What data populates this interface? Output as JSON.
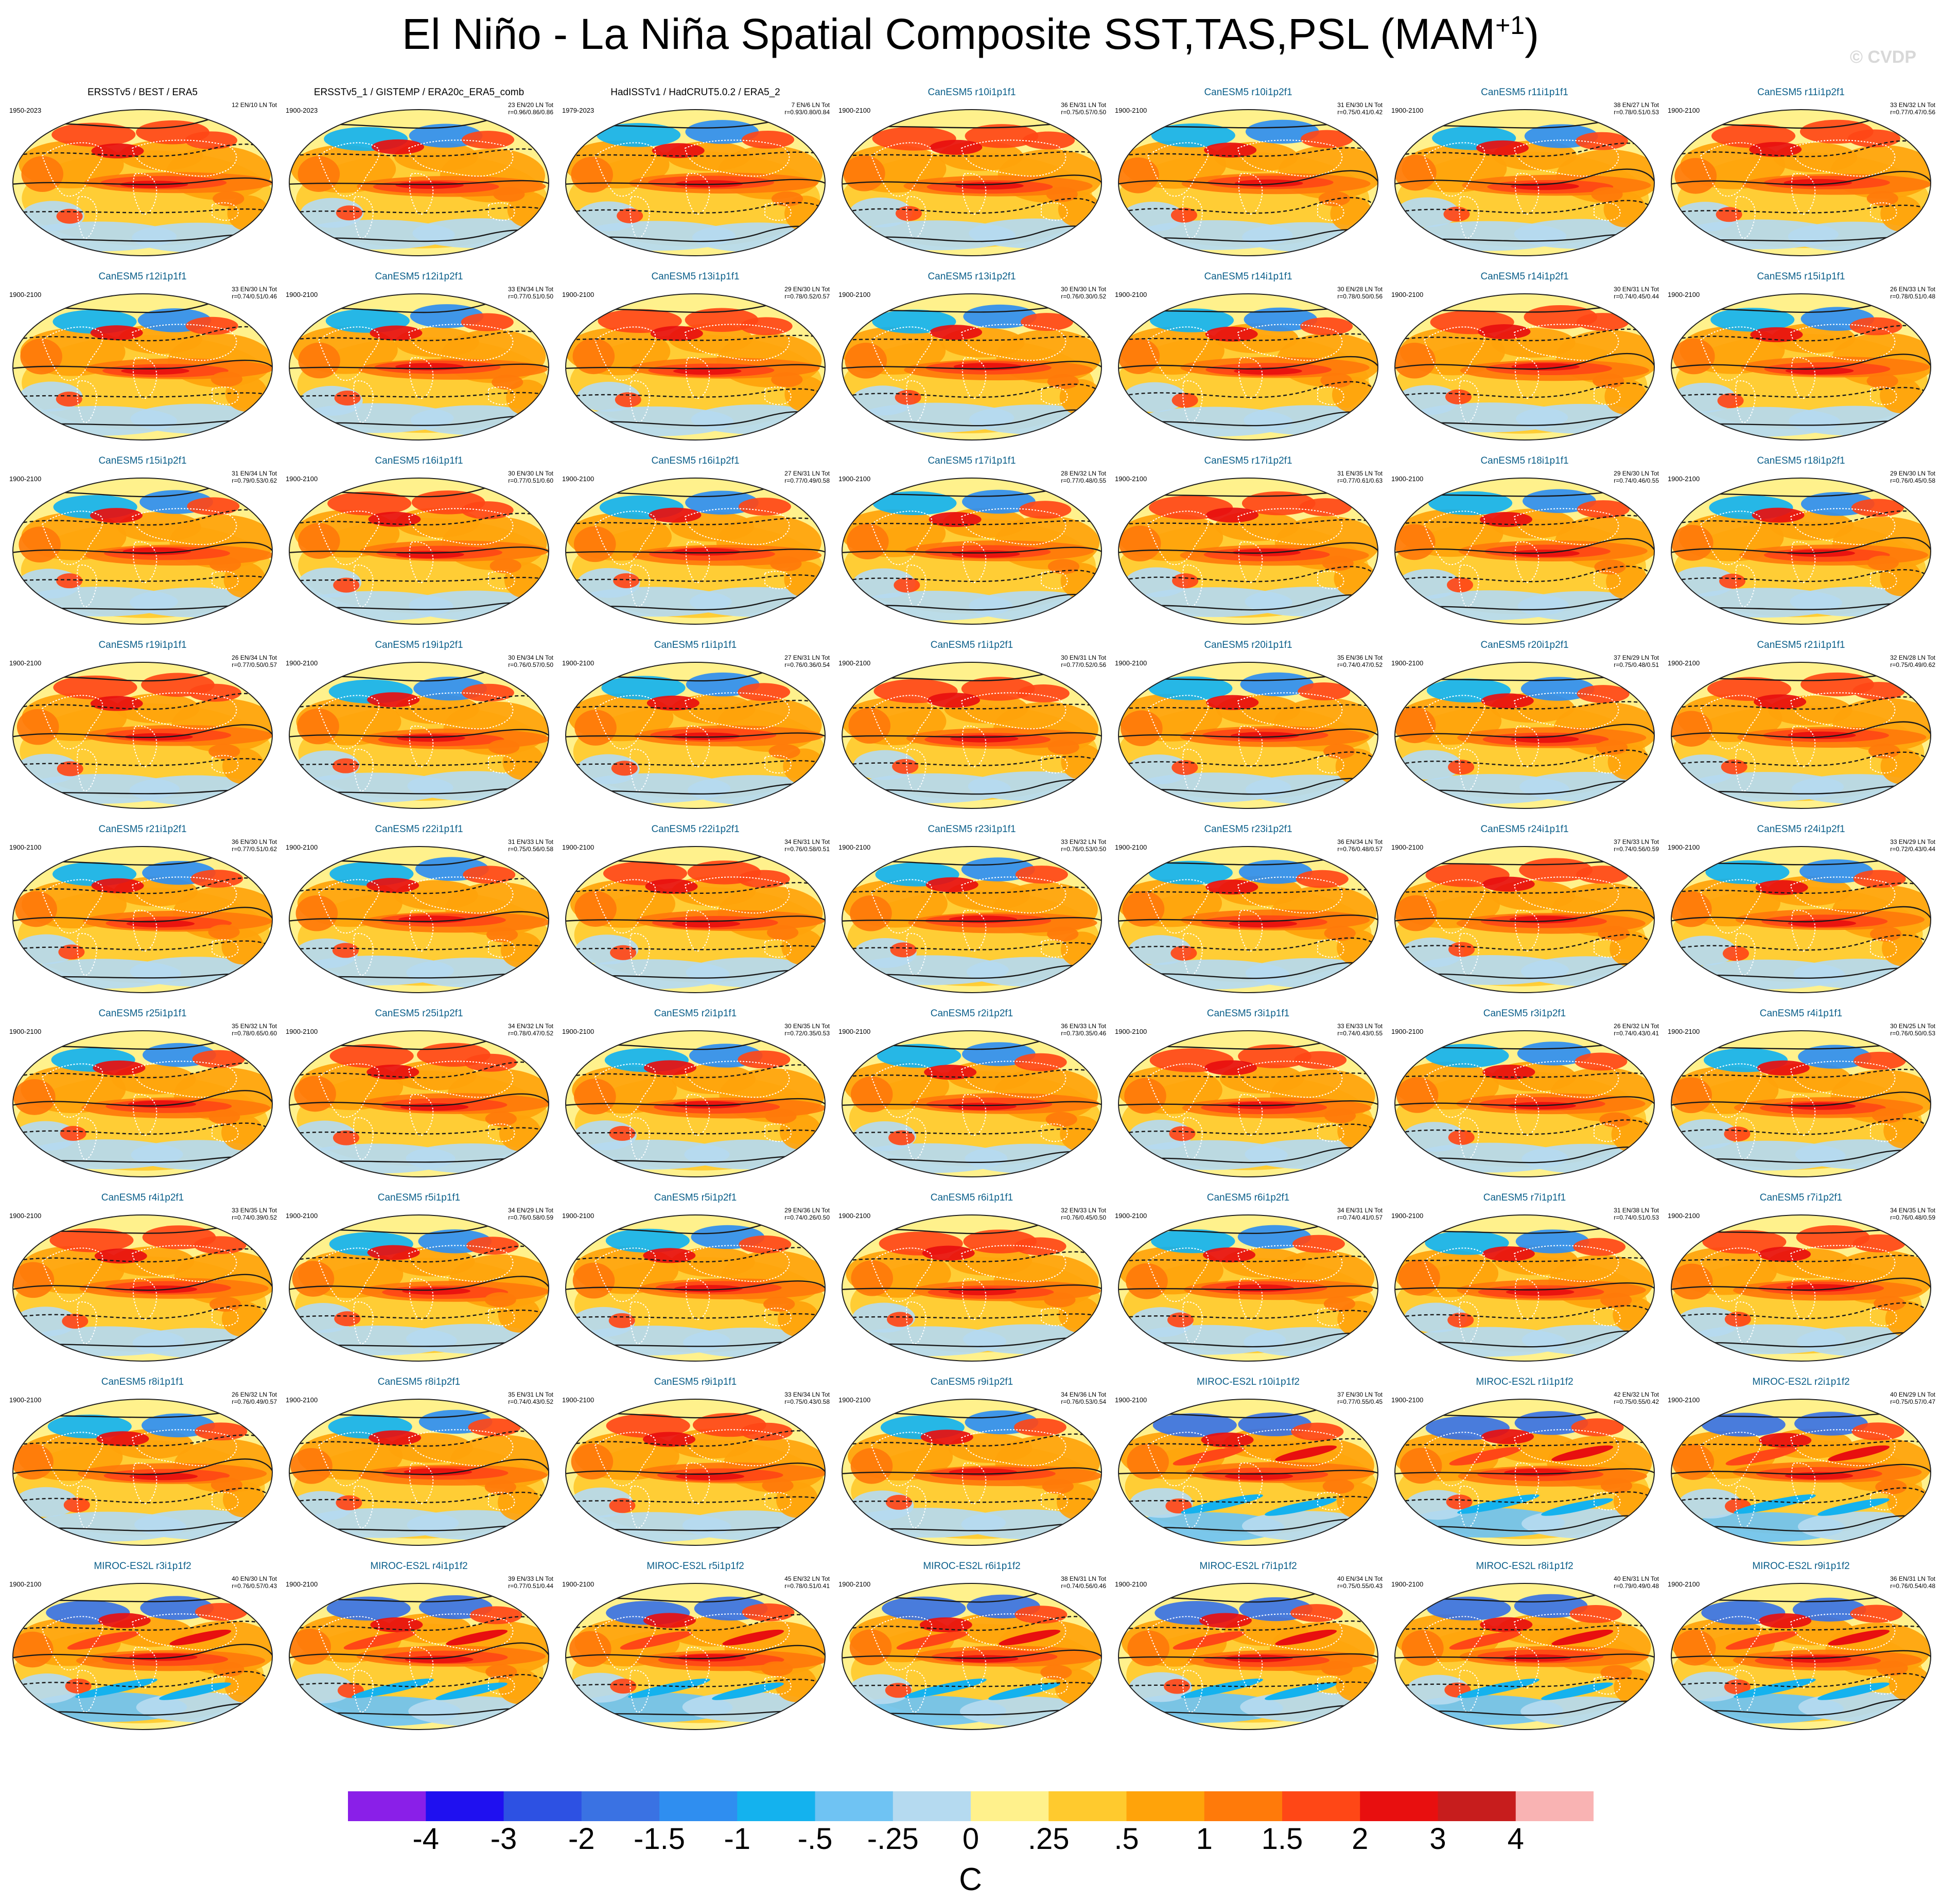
{
  "figure": {
    "title": "El Niño - La Niña Spatial Composite SST,TAS,PSL (MAM",
    "title_superscript": "+1",
    "title_close": ")",
    "watermark": "© CVDP"
  },
  "palette": [
    "#8a1fe8",
    "#1f10f0",
    "#2d51e3",
    "#3a72e3",
    "#2f8ef0",
    "#14b2ee",
    "#6fc3f3",
    "#b5daf0",
    "#fff18c",
    "#ffca2e",
    "#ffa30a",
    "#ff7a0a",
    "#ff4716",
    "#e80f0f",
    "#c71d1d",
    "#f9b3b3"
  ],
  "chart_data": {
    "type": "heatmap",
    "variables": [
      "SST",
      "TAS",
      "PSL"
    ],
    "colorbar": {
      "labels": [
        "-4",
        "-3",
        "-2",
        "-1.5",
        "-1",
        "-.5",
        "-.25",
        "0",
        ".25",
        ".5",
        "1",
        "1.5",
        "2",
        "3",
        "4"
      ],
      "unit": "C"
    },
    "panels": [
      {
        "title": "ERSSTv5 / BEST / ERA5",
        "period": "1950-2023",
        "stats1": "12 EN/10 LN Tot",
        "stats2": "",
        "kind": "obs"
      },
      {
        "title": "ERSSTv5_1 / GISTEMP / ERA20c_ERA5_comb",
        "period": "1900-2023",
        "stats1": "23 EN/20 LN Tot",
        "stats2": "r=0.96/0.86/0.86",
        "kind": "obs"
      },
      {
        "title": "HadISSTv1 / HadCRUT5.0.2 / ERA5_2",
        "period": "1979-2023",
        "stats1": "7 EN/6 LN Tot",
        "stats2": "r=0.93/0.80/0.84",
        "kind": "obs"
      },
      {
        "title": "CanESM5 r10i1p1f1",
        "period": "1900-2100",
        "stats1": "36 EN/31 LN Tot",
        "stats2": "r=0.75/0.57/0.50",
        "kind": "model"
      },
      {
        "title": "CanESM5 r10i1p2f1",
        "period": "1900-2100",
        "stats1": "31 EN/30 LN Tot",
        "stats2": "r=0.75/0.41/0.42",
        "kind": "model"
      },
      {
        "title": "CanESM5 r11i1p1f1",
        "period": "1900-2100",
        "stats1": "38 EN/27 LN Tot",
        "stats2": "r=0.78/0.51/0.53",
        "kind": "model"
      },
      {
        "title": "CanESM5 r11i1p2f1",
        "period": "1900-2100",
        "stats1": "33 EN/32 LN Tot",
        "stats2": "r=0.77/0.47/0.56",
        "kind": "model"
      },
      {
        "title": "CanESM5 r12i1p1f1",
        "period": "1900-2100",
        "stats1": "33 EN/30 LN Tot",
        "stats2": "r=0.74/0.51/0.46",
        "kind": "model"
      },
      {
        "title": "CanESM5 r12i1p2f1",
        "period": "1900-2100",
        "stats1": "33 EN/34 LN Tot",
        "stats2": "r=0.77/0.51/0.50",
        "kind": "model"
      },
      {
        "title": "CanESM5 r13i1p1f1",
        "period": "1900-2100",
        "stats1": "29 EN/30 LN Tot",
        "stats2": "r=0.78/0.52/0.57",
        "kind": "model"
      },
      {
        "title": "CanESM5 r13i1p2f1",
        "period": "1900-2100",
        "stats1": "30 EN/30 LN Tot",
        "stats2": "r=0.76/0.30/0.52",
        "kind": "model"
      },
      {
        "title": "CanESM5 r14i1p1f1",
        "period": "1900-2100",
        "stats1": "30 EN/28 LN Tot",
        "stats2": "r=0.78/0.50/0.56",
        "kind": "model"
      },
      {
        "title": "CanESM5 r14i1p2f1",
        "period": "1900-2100",
        "stats1": "30 EN/31 LN Tot",
        "stats2": "r=0.74/0.45/0.44",
        "kind": "model"
      },
      {
        "title": "CanESM5 r15i1p1f1",
        "period": "1900-2100",
        "stats1": "26 EN/33 LN Tot",
        "stats2": "r=0.78/0.51/0.48",
        "kind": "model"
      },
      {
        "title": "CanESM5 r15i1p2f1",
        "period": "1900-2100",
        "stats1": "31 EN/34 LN Tot",
        "stats2": "r=0.79/0.53/0.62",
        "kind": "model"
      },
      {
        "title": "CanESM5 r16i1p1f1",
        "period": "1900-2100",
        "stats1": "30 EN/30 LN Tot",
        "stats2": "r=0.77/0.51/0.60",
        "kind": "model"
      },
      {
        "title": "CanESM5 r16i1p2f1",
        "period": "1900-2100",
        "stats1": "27 EN/31 LN Tot",
        "stats2": "r=0.77/0.49/0.58",
        "kind": "model"
      },
      {
        "title": "CanESM5 r17i1p1f1",
        "period": "1900-2100",
        "stats1": "28 EN/32 LN Tot",
        "stats2": "r=0.77/0.48/0.55",
        "kind": "model"
      },
      {
        "title": "CanESM5 r17i1p2f1",
        "period": "1900-2100",
        "stats1": "31 EN/35 LN Tot",
        "stats2": "r=0.77/0.61/0.63",
        "kind": "model"
      },
      {
        "title": "CanESM5 r18i1p1f1",
        "period": "1900-2100",
        "stats1": "29 EN/30 LN Tot",
        "stats2": "r=0.74/0.46/0.55",
        "kind": "model"
      },
      {
        "title": "CanESM5 r18i1p2f1",
        "period": "1900-2100",
        "stats1": "29 EN/30 LN Tot",
        "stats2": "r=0.76/0.45/0.58",
        "kind": "model"
      },
      {
        "title": "CanESM5 r19i1p1f1",
        "period": "1900-2100",
        "stats1": "26 EN/34 LN Tot",
        "stats2": "r=0.77/0.50/0.57",
        "kind": "model"
      },
      {
        "title": "CanESM5 r19i1p2f1",
        "period": "1900-2100",
        "stats1": "30 EN/34 LN Tot",
        "stats2": "r=0.76/0.57/0.50",
        "kind": "model"
      },
      {
        "title": "CanESM5 r1i1p1f1",
        "period": "1900-2100",
        "stats1": "27 EN/31 LN Tot",
        "stats2": "r=0.76/0.36/0.54",
        "kind": "model"
      },
      {
        "title": "CanESM5 r1i1p2f1",
        "period": "1900-2100",
        "stats1": "30 EN/31 LN Tot",
        "stats2": "r=0.77/0.52/0.56",
        "kind": "model"
      },
      {
        "title": "CanESM5 r20i1p1f1",
        "period": "1900-2100",
        "stats1": "35 EN/36 LN Tot",
        "stats2": "r=0.74/0.47/0.52",
        "kind": "model"
      },
      {
        "title": "CanESM5 r20i1p2f1",
        "period": "1900-2100",
        "stats1": "37 EN/29 LN Tot",
        "stats2": "r=0.75/0.48/0.51",
        "kind": "model"
      },
      {
        "title": "CanESM5 r21i1p1f1",
        "period": "1900-2100",
        "stats1": "32 EN/28 LN Tot",
        "stats2": "r=0.75/0.49/0.62",
        "kind": "model"
      },
      {
        "title": "CanESM5 r21i1p2f1",
        "period": "1900-2100",
        "stats1": "36 EN/30 LN Tot",
        "stats2": "r=0.77/0.51/0.62",
        "kind": "model"
      },
      {
        "title": "CanESM5 r22i1p1f1",
        "period": "1900-2100",
        "stats1": "31 EN/33 LN Tot",
        "stats2": "r=0.75/0.56/0.58",
        "kind": "model"
      },
      {
        "title": "CanESM5 r22i1p2f1",
        "period": "1900-2100",
        "stats1": "34 EN/31 LN Tot",
        "stats2": "r=0.76/0.58/0.51",
        "kind": "model"
      },
      {
        "title": "CanESM5 r23i1p1f1",
        "period": "1900-2100",
        "stats1": "33 EN/32 LN Tot",
        "stats2": "r=0.76/0.53/0.50",
        "kind": "model"
      },
      {
        "title": "CanESM5 r23i1p2f1",
        "period": "1900-2100",
        "stats1": "36 EN/34 LN Tot",
        "stats2": "r=0.76/0.48/0.57",
        "kind": "model"
      },
      {
        "title": "CanESM5 r24i1p1f1",
        "period": "1900-2100",
        "stats1": "37 EN/33 LN Tot",
        "stats2": "r=0.74/0.56/0.59",
        "kind": "model"
      },
      {
        "title": "CanESM5 r24i1p2f1",
        "period": "1900-2100",
        "stats1": "33 EN/29 LN Tot",
        "stats2": "r=0.72/0.43/0.44",
        "kind": "model"
      },
      {
        "title": "CanESM5 r25i1p1f1",
        "period": "1900-2100",
        "stats1": "35 EN/32 LN Tot",
        "stats2": "r=0.78/0.65/0.60",
        "kind": "model"
      },
      {
        "title": "CanESM5 r25i1p2f1",
        "period": "1900-2100",
        "stats1": "34 EN/32 LN Tot",
        "stats2": "r=0.78/0.47/0.52",
        "kind": "model"
      },
      {
        "title": "CanESM5 r2i1p1f1",
        "period": "1900-2100",
        "stats1": "30 EN/35 LN Tot",
        "stats2": "r=0.72/0.35/0.53",
        "kind": "model"
      },
      {
        "title": "CanESM5 r2i1p2f1",
        "period": "1900-2100",
        "stats1": "36 EN/33 LN Tot",
        "stats2": "r=0.73/0.35/0.46",
        "kind": "model"
      },
      {
        "title": "CanESM5 r3i1p1f1",
        "period": "1900-2100",
        "stats1": "33 EN/33 LN Tot",
        "stats2": "r=0.74/0.43/0.55",
        "kind": "model"
      },
      {
        "title": "CanESM5 r3i1p2f1",
        "period": "1900-2100",
        "stats1": "26 EN/32 LN Tot",
        "stats2": "r=0.74/0.43/0.41",
        "kind": "model"
      },
      {
        "title": "CanESM5 r4i1p1f1",
        "period": "1900-2100",
        "stats1": "30 EN/25 LN Tot",
        "stats2": "r=0.76/0.50/0.53",
        "kind": "model"
      },
      {
        "title": "CanESM5 r4i1p2f1",
        "period": "1900-2100",
        "stats1": "33 EN/35 LN Tot",
        "stats2": "r=0.74/0.39/0.52",
        "kind": "model"
      },
      {
        "title": "CanESM5 r5i1p1f1",
        "period": "1900-2100",
        "stats1": "34 EN/29 LN Tot",
        "stats2": "r=0.76/0.58/0.59",
        "kind": "model"
      },
      {
        "title": "CanESM5 r5i1p2f1",
        "period": "1900-2100",
        "stats1": "29 EN/36 LN Tot",
        "stats2": "r=0.74/0.26/0.50",
        "kind": "model"
      },
      {
        "title": "CanESM5 r6i1p1f1",
        "period": "1900-2100",
        "stats1": "32 EN/33 LN Tot",
        "stats2": "r=0.76/0.45/0.50",
        "kind": "model"
      },
      {
        "title": "CanESM5 r6i1p2f1",
        "period": "1900-2100",
        "stats1": "34 EN/31 LN Tot",
        "stats2": "r=0.74/0.41/0.57",
        "kind": "model"
      },
      {
        "title": "CanESM5 r7i1p1f1",
        "period": "1900-2100",
        "stats1": "31 EN/38 LN Tot",
        "stats2": "r=0.74/0.51/0.53",
        "kind": "model"
      },
      {
        "title": "CanESM5 r7i1p2f1",
        "period": "1900-2100",
        "stats1": "34 EN/35 LN Tot",
        "stats2": "r=0.76/0.48/0.59",
        "kind": "model"
      },
      {
        "title": "CanESM5 r8i1p1f1",
        "period": "1900-2100",
        "stats1": "26 EN/32 LN Tot",
        "stats2": "r=0.76/0.49/0.57",
        "kind": "model"
      },
      {
        "title": "CanESM5 r8i1p2f1",
        "period": "1900-2100",
        "stats1": "35 EN/31 LN Tot",
        "stats2": "r=0.74/0.43/0.52",
        "kind": "model"
      },
      {
        "title": "CanESM5 r9i1p1f1",
        "period": "1900-2100",
        "stats1": "33 EN/34 LN Tot",
        "stats2": "r=0.75/0.43/0.58",
        "kind": "model"
      },
      {
        "title": "CanESM5 r9i1p2f1",
        "period": "1900-2100",
        "stats1": "34 EN/36 LN Tot",
        "stats2": "r=0.76/0.53/0.54",
        "kind": "model"
      },
      {
        "title": "MIROC-ES2L r10i1p1f2",
        "period": "1900-2100",
        "stats1": "37 EN/30 LN Tot",
        "stats2": "r=0.77/0.55/0.45",
        "kind": "model"
      },
      {
        "title": "MIROC-ES2L r1i1p1f2",
        "period": "1900-2100",
        "stats1": "42 EN/32 LN Tot",
        "stats2": "r=0.75/0.55/0.42",
        "kind": "model"
      },
      {
        "title": "MIROC-ES2L r2i1p1f2",
        "period": "1900-2100",
        "stats1": "40 EN/29 LN Tot",
        "stats2": "r=0.75/0.57/0.47",
        "kind": "model"
      },
      {
        "title": "MIROC-ES2L r3i1p1f2",
        "period": "1900-2100",
        "stats1": "40 EN/30 LN Tot",
        "stats2": "r=0.76/0.57/0.43",
        "kind": "model"
      },
      {
        "title": "MIROC-ES2L r4i1p1f2",
        "period": "1900-2100",
        "stats1": "39 EN/33 LN Tot",
        "stats2": "r=0.77/0.51/0.44",
        "kind": "model"
      },
      {
        "title": "MIROC-ES2L r5i1p1f2",
        "period": "1900-2100",
        "stats1": "45 EN/32 LN Tot",
        "stats2": "r=0.78/0.51/0.41",
        "kind": "model"
      },
      {
        "title": "MIROC-ES2L r6i1p1f2",
        "period": "1900-2100",
        "stats1": "38 EN/31 LN Tot",
        "stats2": "r=0.74/0.56/0.46",
        "kind": "model"
      },
      {
        "title": "MIROC-ES2L r7i1p1f2",
        "period": "1900-2100",
        "stats1": "40 EN/34 LN Tot",
        "stats2": "r=0.75/0.55/0.43",
        "kind": "model"
      },
      {
        "title": "MIROC-ES2L r8i1p1f2",
        "period": "1900-2100",
        "stats1": "40 EN/31 LN Tot",
        "stats2": "r=0.79/0.49/0.48",
        "kind": "model"
      },
      {
        "title": "MIROC-ES2L r9i1p1f2",
        "period": "1900-2100",
        "stats1": "36 EN/31 LN Tot",
        "stats2": "r=0.76/0.54/0.48",
        "kind": "model"
      }
    ]
  }
}
